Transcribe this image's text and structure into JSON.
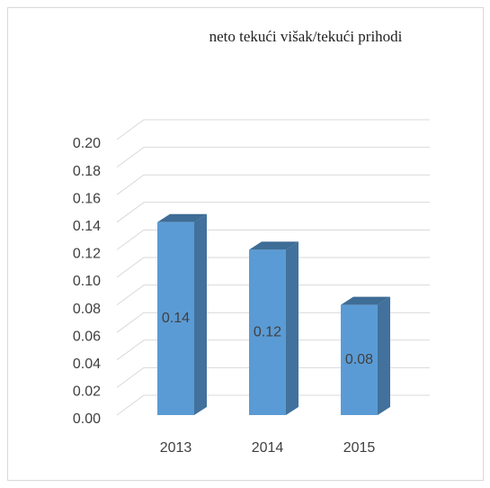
{
  "chart_data": {
    "type": "bar3d",
    "title": "neto tekući višak/tekući prihodi",
    "categories": [
      "2013",
      "2014",
      "2015"
    ],
    "values": [
      0.14,
      0.12,
      0.08
    ],
    "color": "#5b9bd5",
    "ylim": [
      0,
      0.2
    ],
    "yticks": [
      {
        "value": 0,
        "label": "0.00"
      },
      0.02,
      0.04,
      0.06,
      0.08,
      {
        "value": 0.1,
        "label": "0.10"
      },
      0.12,
      0.14,
      0.16,
      0.18,
      {
        "value": 0.2,
        "label": "0.20"
      }
    ],
    "grid": true
  }
}
